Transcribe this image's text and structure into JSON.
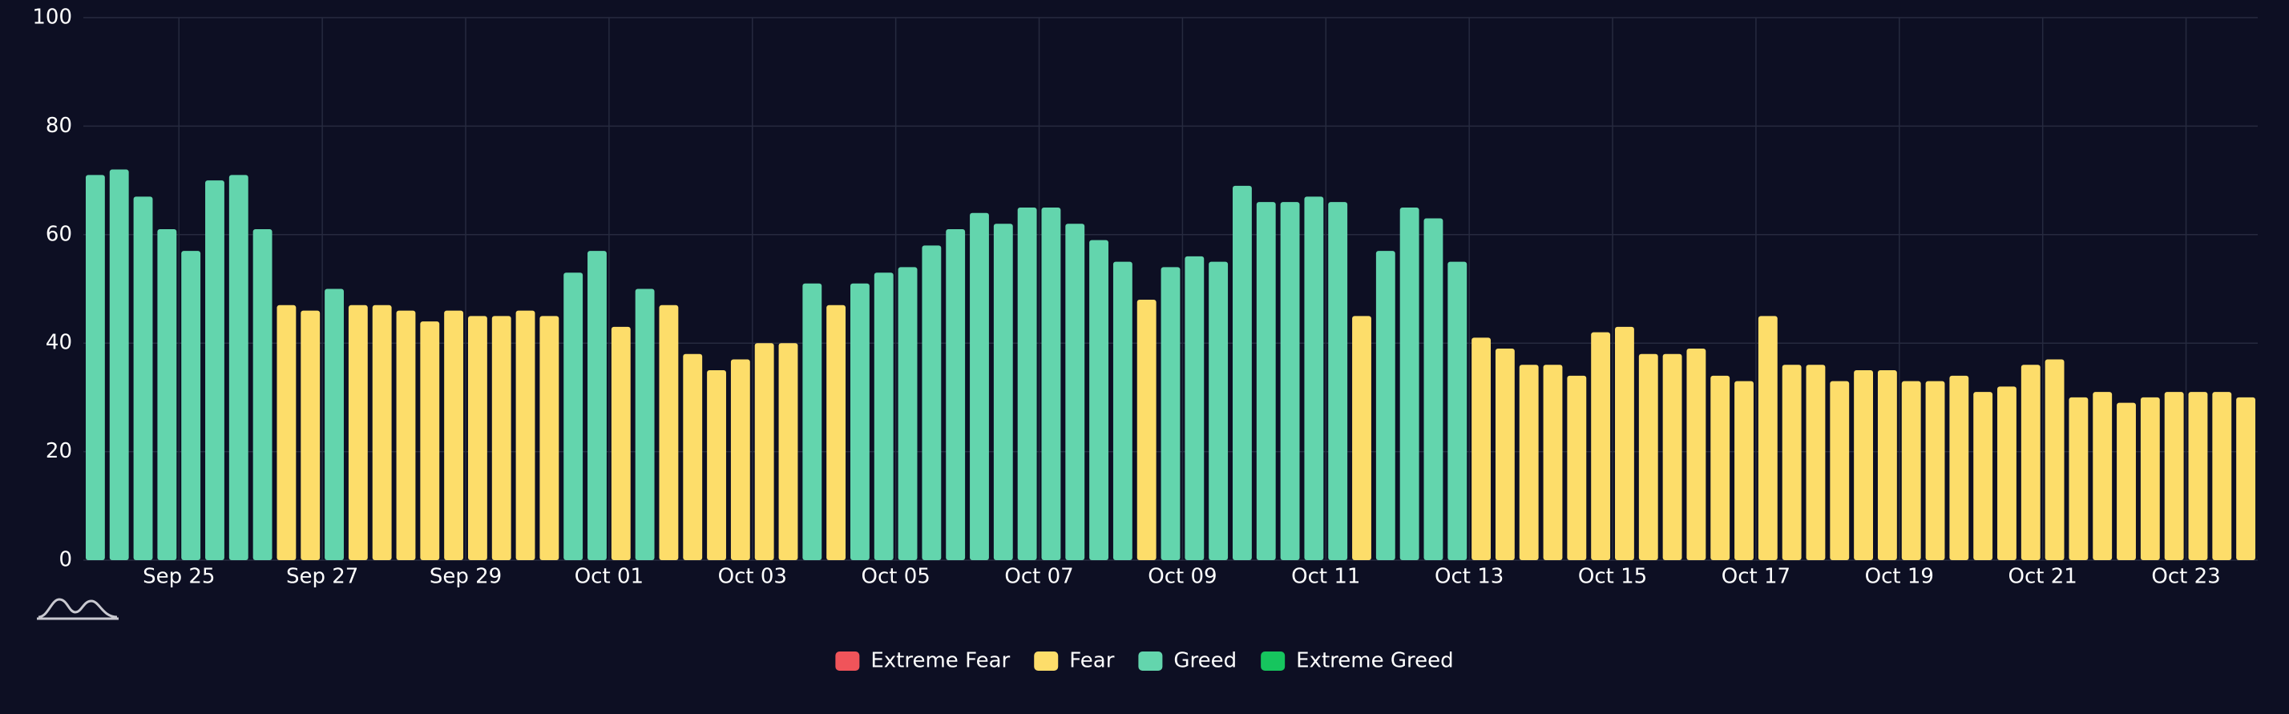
{
  "chart_data": {
    "type": "bar",
    "categories": [
      null,
      null,
      null,
      null,
      "Sep 25",
      null,
      null,
      null,
      null,
      null,
      "Sep 27",
      null,
      null,
      null,
      null,
      null,
      "Sep 29",
      null,
      null,
      null,
      null,
      null,
      "Oct 01",
      null,
      null,
      null,
      null,
      null,
      "Oct 03",
      null,
      null,
      null,
      null,
      null,
      "Oct 05",
      null,
      null,
      null,
      null,
      null,
      "Oct 07",
      null,
      null,
      null,
      null,
      null,
      "Oct 09",
      null,
      null,
      null,
      null,
      null,
      "Oct 11",
      null,
      null,
      null,
      null,
      null,
      "Oct 13",
      null,
      null,
      null,
      null,
      null,
      "Oct 15",
      null,
      null,
      null,
      null,
      null,
      "Oct 17",
      null,
      null,
      null,
      null,
      null,
      "Oct 19",
      null,
      null,
      null,
      null,
      null,
      "Oct 21",
      null,
      null,
      null,
      null,
      null,
      "Oct 23",
      null,
      null
    ],
    "series": [
      {
        "name": "Extreme Fear",
        "color": "#f0545a",
        "values": [
          null,
          null,
          null,
          null,
          null,
          null,
          null,
          null,
          null,
          null,
          null,
          null,
          null,
          null,
          null,
          null,
          null,
          null,
          null,
          null,
          null,
          null,
          null,
          null,
          null,
          null,
          null,
          null,
          null,
          null,
          null,
          null,
          null,
          null,
          null,
          null,
          null,
          null,
          null,
          null,
          null,
          null,
          null,
          null,
          null,
          null,
          null,
          null,
          null,
          null,
          null,
          null,
          null,
          null,
          null,
          null,
          null,
          null,
          null,
          null,
          null,
          null,
          null,
          null,
          null,
          null,
          null,
          null,
          null,
          null,
          null,
          null,
          null,
          null,
          null,
          null,
          null,
          null,
          null,
          null,
          null,
          null,
          null,
          null,
          null,
          null,
          null,
          null,
          null,
          null,
          null
        ]
      },
      {
        "name": "Fear",
        "color": "#fddd6a",
        "values": [
          null,
          null,
          null,
          null,
          null,
          null,
          null,
          null,
          47,
          46,
          null,
          47,
          47,
          46,
          44,
          46,
          45,
          45,
          46,
          45,
          null,
          null,
          43,
          null,
          47,
          38,
          35,
          37,
          40,
          40,
          null,
          47,
          null,
          null,
          null,
          null,
          null,
          null,
          null,
          null,
          null,
          null,
          null,
          null,
          48,
          null,
          null,
          null,
          null,
          null,
          null,
          null,
          null,
          45,
          null,
          null,
          null,
          null,
          41,
          39,
          36,
          36,
          34,
          42,
          43,
          38,
          38,
          39,
          34,
          33,
          45,
          36,
          36,
          33,
          35,
          35,
          33,
          33,
          34,
          31,
          32,
          36,
          37,
          30,
          31,
          29,
          30,
          31,
          31,
          31,
          30
        ]
      },
      {
        "name": "Greed",
        "color": "#63d5ad",
        "values": [
          71,
          72,
          67,
          61,
          57,
          70,
          71,
          61,
          null,
          null,
          50,
          null,
          null,
          null,
          null,
          null,
          null,
          null,
          null,
          null,
          53,
          57,
          null,
          50,
          null,
          null,
          null,
          null,
          null,
          null,
          51,
          null,
          51,
          53,
          54,
          58,
          61,
          64,
          62,
          65,
          65,
          62,
          59,
          55,
          null,
          54,
          56,
          55,
          69,
          66,
          66,
          67,
          66,
          null,
          57,
          65,
          63,
          55,
          null,
          null,
          null,
          null,
          null,
          null,
          null,
          null,
          null,
          null,
          null,
          null,
          null,
          null,
          null,
          null,
          null,
          null,
          null,
          null,
          null,
          null,
          null,
          null,
          null,
          null,
          null,
          null,
          null,
          null,
          null,
          null,
          null
        ]
      },
      {
        "name": "Extreme Greed",
        "color": "#16c55e",
        "values": [
          null,
          null,
          null,
          null,
          null,
          null,
          null,
          null,
          null,
          null,
          null,
          null,
          null,
          null,
          null,
          null,
          null,
          null,
          null,
          null,
          null,
          null,
          null,
          null,
          null,
          null,
          null,
          null,
          null,
          null,
          null,
          null,
          null,
          null,
          null,
          null,
          null,
          null,
          null,
          null,
          null,
          null,
          null,
          null,
          null,
          null,
          null,
          null,
          null,
          null,
          null,
          null,
          null,
          null,
          null,
          null,
          null,
          null,
          null,
          null,
          null,
          null,
          null,
          null,
          null,
          null,
          null,
          null,
          null,
          null,
          null,
          null,
          null,
          null,
          null,
          null,
          null,
          null,
          null,
          null,
          null,
          null,
          null,
          null,
          null,
          null,
          null,
          null,
          null,
          null,
          null
        ]
      }
    ],
    "ylim": [
      0,
      100
    ],
    "yticks": [
      0,
      20,
      40,
      60,
      80,
      100
    ],
    "grid": true,
    "legend": "bottom"
  }
}
